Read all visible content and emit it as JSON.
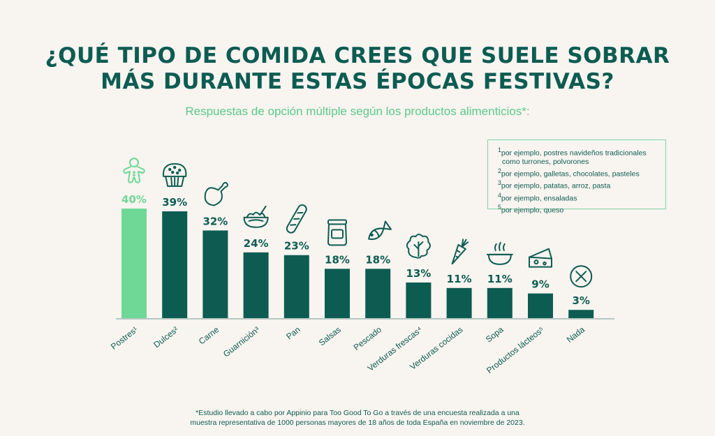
{
  "title_line1": "¿QUÉ TIPO DE COMIDA CREES QUE SUELE SOBRAR",
  "title_line2": "MÁS DURANTE ESTAS ÉPOCAS FESTIVAS?",
  "subtitle": "Respuestas de opción múltiple según los productos alimenticios*:",
  "notes": {
    "n1": "por ejemplo, postres navideños tradicionales",
    "n1b": "como turrones, polvorones",
    "n2": "por ejemplo, galletas, chocolates, pasteles",
    "n3": "por ejemplo, patatas, arroz, pasta",
    "n4": "por ejemplo, ensaladas",
    "n5": "por ejemplo, queso"
  },
  "footnote_line1": "*Estudio llevado a cabo por Appinio para Too Good To Go a través de una encuesta realizada a una",
  "footnote_line2": "muestra representativa de 1000 personas mayores de 18 años de toda España en noviembre de 2023.",
  "colors": {
    "highlight": "#6fd897",
    "bar": "#0d5c52",
    "axis": "#9fb8b4"
  },
  "chart_data": {
    "type": "bar",
    "categories": [
      "Postres¹",
      "Dulces²",
      "Carne",
      "Guarnición³",
      "Pan",
      "Salsas",
      "Pescado",
      "Verduras frescas⁴",
      "Verduras cocidas",
      "Sopa",
      "Productos lácteos⁵",
      "Nada"
    ],
    "values": [
      40,
      39,
      32,
      24,
      23,
      18,
      18,
      13,
      11,
      11,
      9,
      3
    ],
    "value_labels": [
      "40%",
      "39%",
      "32%",
      "24%",
      "23%",
      "18%",
      "18%",
      "13%",
      "11%",
      "11%",
      "9%",
      "3%"
    ],
    "icons": [
      "gingerbread-icon",
      "muffin-icon",
      "drumstick-icon",
      "pasta-bowl-icon",
      "baguette-icon",
      "jar-icon",
      "fish-icon",
      "lettuce-icon",
      "carrot-icon",
      "soup-icon",
      "cheese-icon",
      "none-icon"
    ],
    "highlight_index": 0,
    "ylim": [
      0,
      40
    ]
  }
}
